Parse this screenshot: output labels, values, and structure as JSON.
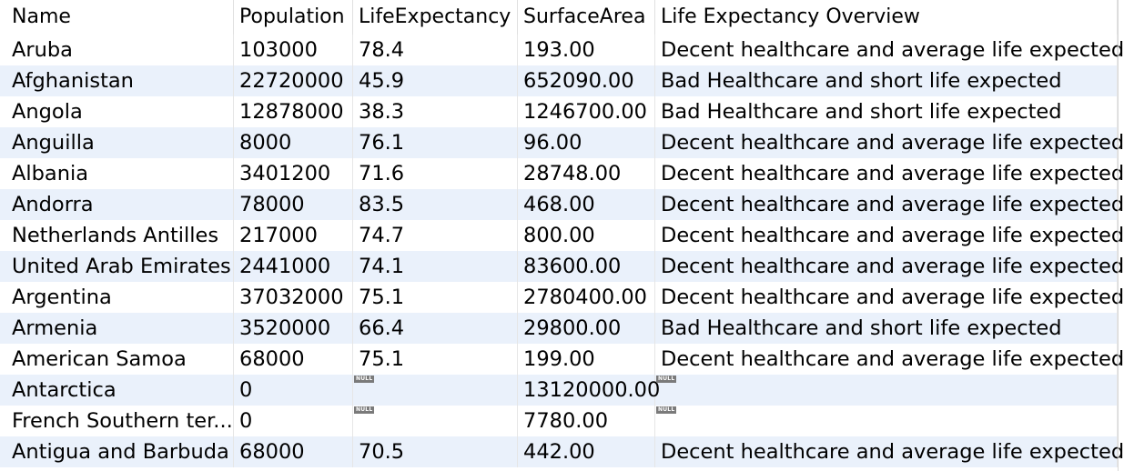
{
  "columns": [
    "Name",
    "Population",
    "LifeExpectancy",
    "SurfaceArea",
    "Life Expectancy Overview"
  ],
  "null_label": "NULL",
  "rows": [
    [
      "Aruba",
      "103000",
      "78.4",
      "193.00",
      "Decent healthcare and average life expected"
    ],
    [
      "Afghanistan",
      "22720000",
      "45.9",
      "652090.00",
      "Bad Healthcare and short life expected"
    ],
    [
      "Angola",
      "12878000",
      "38.3",
      "1246700.00",
      "Bad Healthcare and short life expected"
    ],
    [
      "Anguilla",
      "8000",
      "76.1",
      "96.00",
      "Decent healthcare and average life expected"
    ],
    [
      "Albania",
      "3401200",
      "71.6",
      "28748.00",
      "Decent healthcare and average life expected"
    ],
    [
      "Andorra",
      "78000",
      "83.5",
      "468.00",
      "Decent healthcare and average life expected"
    ],
    [
      "Netherlands Antilles",
      "217000",
      "74.7",
      "800.00",
      "Decent healthcare and average life expected"
    ],
    [
      "United Arab Emirates",
      "2441000",
      "74.1",
      "83600.00",
      "Decent healthcare and average life expected"
    ],
    [
      "Argentina",
      "37032000",
      "75.1",
      "2780400.00",
      "Decent healthcare and average life expected"
    ],
    [
      "Armenia",
      "3520000",
      "66.4",
      "29800.00",
      "Bad Healthcare and short life expected"
    ],
    [
      "American Samoa",
      "68000",
      "75.1",
      "199.00",
      "Decent healthcare and average life expected"
    ],
    [
      "Antarctica",
      "0",
      null,
      "13120000.00",
      null
    ],
    [
      "French Southern ter...",
      "0",
      null,
      "7780.00",
      null
    ],
    [
      "Antigua and Barbuda",
      "68000",
      "70.5",
      "442.00",
      "Decent healthcare and average life expected"
    ]
  ]
}
